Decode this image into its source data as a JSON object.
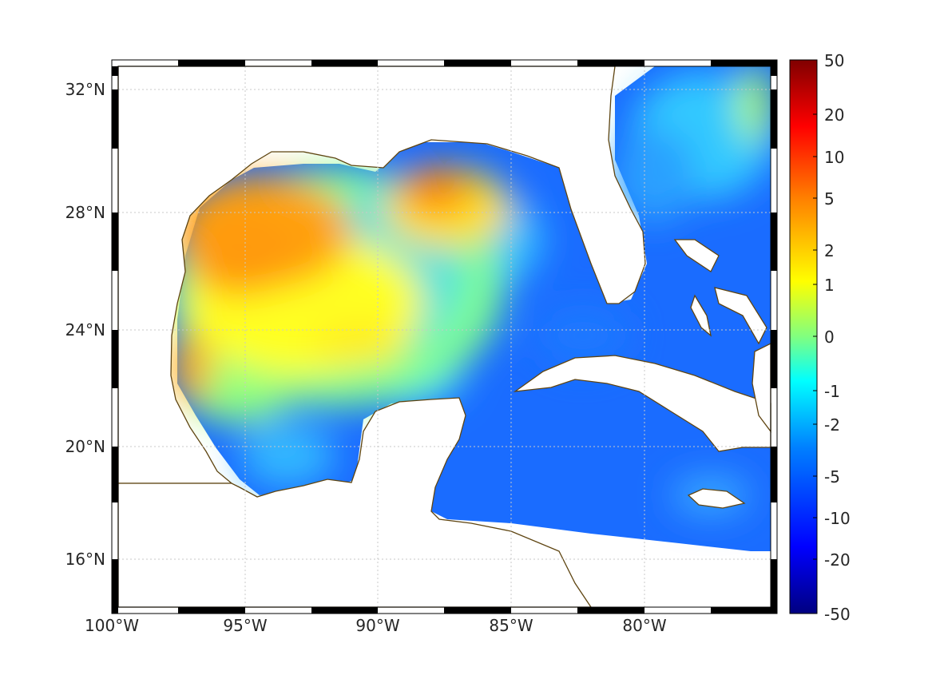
{
  "map": {
    "lon_range": [
      -100,
      -75
    ],
    "lat_range": [
      14.2,
      33
    ],
    "x_ticks": [
      "100°W",
      "95°W",
      "90°W",
      "85°W",
      "80°W"
    ],
    "y_ticks": [
      "32°N",
      "28°N",
      "24°N",
      "20°N",
      "16°N"
    ],
    "grid": "dotted",
    "frame": "black-and-white striped",
    "coastline_color": "#5e4410",
    "land_color": "#ffffff",
    "field": "Gulf of Mexico / Caribbean gridded anomaly (no data over land)"
  },
  "colorbar": {
    "colormap": "jet",
    "tick_labels": [
      "50",
      "20",
      "10",
      "5",
      "2",
      "1",
      "0",
      "-1",
      "-2",
      "-5",
      "-10",
      "-20",
      "-50"
    ],
    "colors": [
      "#800000",
      "#ff0000",
      "#ff8000",
      "#ffff00",
      "#80ff80",
      "#00ffff",
      "#0080ff",
      "#0000ff",
      "#000080"
    ]
  }
}
